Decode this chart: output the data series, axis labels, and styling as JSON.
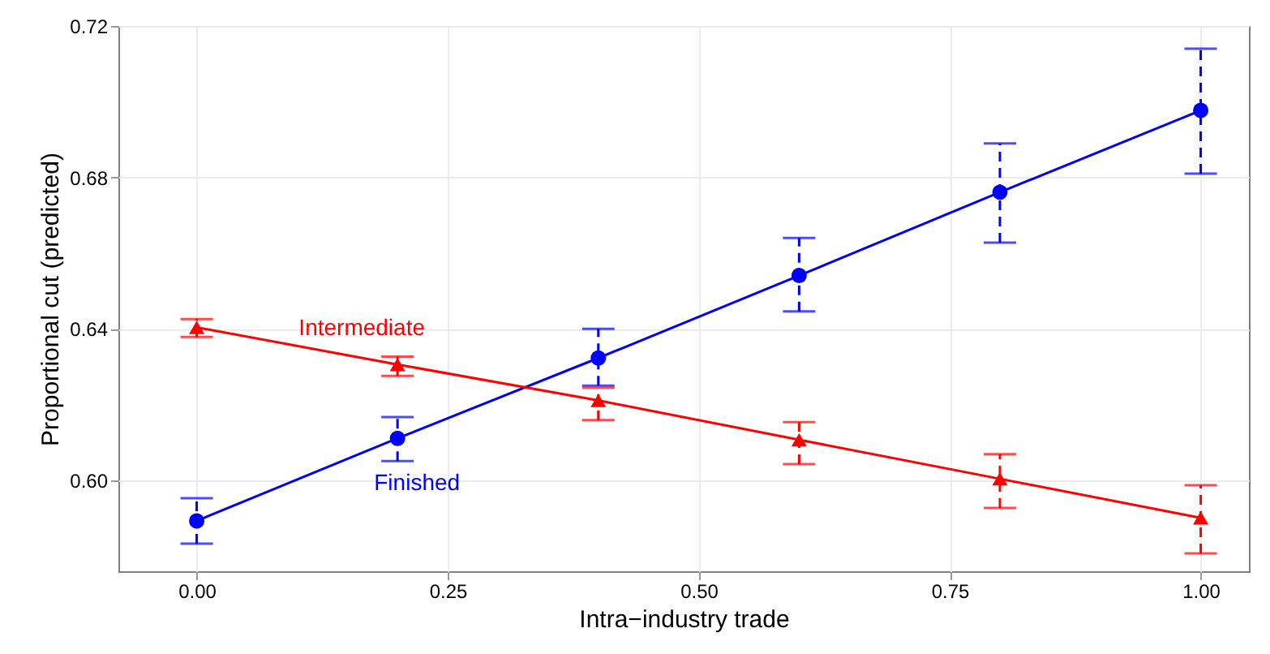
{
  "chart_data": {
    "type": "line",
    "xlabel": "Intra−industry trade",
    "ylabel": "Proportional cut (predicted)",
    "x": [
      0,
      0.2,
      0.4,
      0.6,
      0.8,
      1.0
    ],
    "series": [
      {
        "name": "Finished",
        "color": "#0000ff",
        "marker": "circle",
        "values": [
          0.5893,
          0.6111,
          0.6323,
          0.6541,
          0.6761,
          0.6977
        ],
        "errors": [
          [
            0.5833,
            0.5953
          ],
          [
            0.6051,
            0.6167
          ],
          [
            0.625,
            0.64
          ],
          [
            0.6446,
            0.664
          ],
          [
            0.6628,
            0.689
          ],
          [
            0.681,
            0.714
          ]
        ]
      },
      {
        "name": "Intermediate",
        "color": "#ff0000",
        "marker": "triangle",
        "values": [
          0.6404,
          0.6306,
          0.6211,
          0.6107,
          0.6004,
          0.5901
        ],
        "errors": [
          [
            0.6379,
            0.6426
          ],
          [
            0.6276,
            0.6327
          ],
          [
            0.6159,
            0.6245
          ],
          [
            0.6043,
            0.6154
          ],
          [
            0.5927,
            0.6069
          ],
          [
            0.5807,
            0.5987
          ]
        ]
      }
    ],
    "xlim": [
      -0.078,
      1.048
    ],
    "ylim": [
      0.576,
      0.72
    ],
    "xticks": [
      {
        "value": 0,
        "label": "0.00"
      },
      {
        "value": 0.25,
        "label": "0.25"
      },
      {
        "value": 0.5,
        "label": "0.50"
      },
      {
        "value": 0.75,
        "label": "0.75"
      },
      {
        "value": 1,
        "label": "1.00"
      }
    ],
    "yticks": [
      {
        "value": 0.6,
        "label": "0.60"
      },
      {
        "value": 0.64,
        "label": "0.64"
      },
      {
        "value": 0.68,
        "label": "0.68"
      },
      {
        "value": 0.72,
        "label": "0.72"
      }
    ],
    "grid": true,
    "line_style": "solid"
  }
}
